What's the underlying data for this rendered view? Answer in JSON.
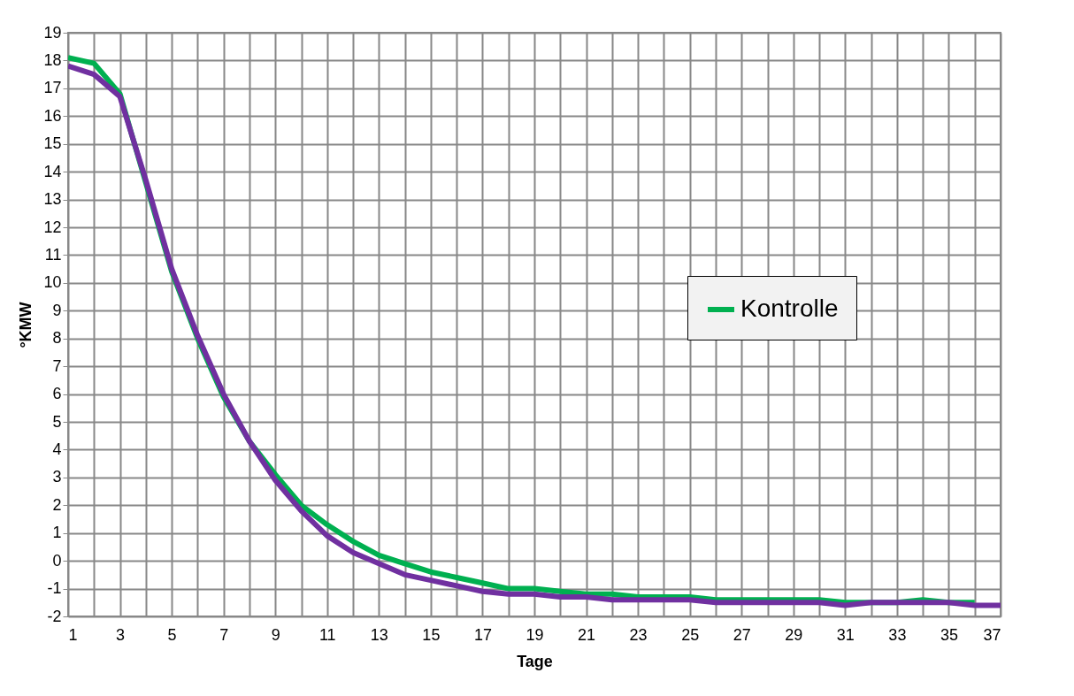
{
  "chart_data": {
    "type": "line",
    "xlabel": "Tage",
    "ylabel": "°KMW",
    "x": [
      1,
      2,
      3,
      4,
      5,
      6,
      7,
      8,
      9,
      10,
      11,
      12,
      13,
      14,
      15,
      16,
      17,
      18,
      19,
      20,
      21,
      22,
      23,
      24,
      25,
      26,
      27,
      28,
      29,
      30,
      31,
      32,
      33,
      34,
      35,
      36,
      37
    ],
    "series": [
      {
        "name": "Kontrolle",
        "color": "#00b050",
        "values": [
          18.1,
          17.9,
          16.8,
          13.6,
          10.4,
          8.0,
          5.9,
          4.3,
          3.1,
          2.0,
          1.3,
          0.7,
          0.2,
          -0.1,
          -0.4,
          -0.6,
          -0.8,
          -1.0,
          -1.0,
          -1.1,
          -1.2,
          -1.2,
          -1.3,
          -1.3,
          -1.3,
          -1.4,
          -1.4,
          -1.4,
          -1.4,
          -1.4,
          -1.5,
          -1.5,
          -1.5,
          -1.4,
          -1.5,
          -1.5,
          null
        ]
      },
      {
        "color": "#7030a0",
        "values": [
          17.8,
          17.5,
          16.7,
          13.7,
          10.5,
          8.1,
          6.0,
          4.3,
          2.9,
          1.8,
          0.9,
          0.3,
          -0.1,
          -0.5,
          -0.7,
          -0.9,
          -1.1,
          -1.2,
          -1.2,
          -1.3,
          -1.3,
          -1.4,
          -1.4,
          -1.4,
          -1.4,
          -1.5,
          -1.5,
          -1.5,
          -1.5,
          -1.5,
          -1.6,
          -1.5,
          -1.5,
          -1.5,
          -1.5,
          -1.6,
          -1.6
        ]
      }
    ],
    "xlim": [
      1,
      37
    ],
    "xticks": [
      1,
      {
        "value": 2,
        "label": null
      },
      3,
      {
        "value": 4,
        "label": null
      },
      5,
      {
        "value": 6,
        "label": null
      },
      7,
      {
        "value": 8,
        "label": null
      },
      9,
      {
        "value": 10,
        "label": null
      },
      11,
      {
        "value": 12,
        "label": null
      },
      13,
      {
        "value": 14,
        "label": null
      },
      15,
      {
        "value": 16,
        "label": null
      },
      17,
      {
        "value": 18,
        "label": null
      },
      19,
      {
        "value": 20,
        "label": null
      },
      21,
      {
        "value": 22,
        "label": null
      },
      23,
      {
        "value": 24,
        "label": null
      },
      25,
      {
        "value": 26,
        "label": null
      },
      27,
      {
        "value": 28,
        "label": null
      },
      29,
      {
        "value": 30,
        "label": null
      },
      31,
      {
        "value": 32,
        "label": null
      },
      33,
      {
        "value": 34,
        "label": null
      },
      35,
      {
        "value": 36,
        "label": null
      },
      37
    ],
    "ylim": [
      -2,
      19
    ],
    "yticks": [
      -2,
      -1,
      0,
      1,
      2,
      3,
      4,
      5,
      6,
      7,
      8,
      9,
      10,
      11,
      12,
      13,
      14,
      15,
      16,
      17,
      18,
      19
    ],
    "grid": true,
    "legend": "right",
    "marker": "none",
    "line_style": "solid"
  }
}
